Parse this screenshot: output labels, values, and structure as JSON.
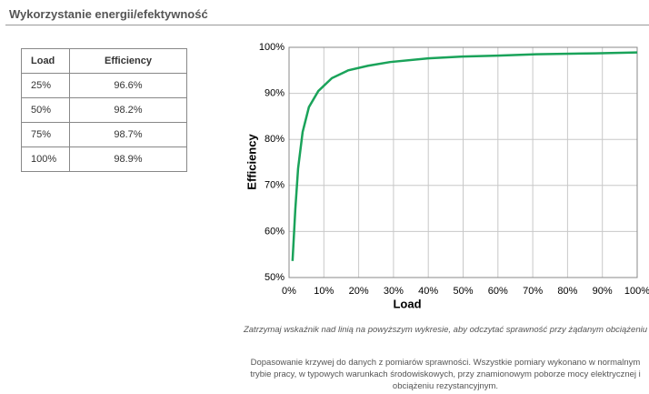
{
  "header": {
    "title": "Wykorzystanie energii/efektywność"
  },
  "table": {
    "columns": [
      "Load",
      "Efficiency"
    ],
    "rows": [
      [
        "25%",
        "96.6%"
      ],
      [
        "50%",
        "98.2%"
      ],
      [
        "75%",
        "98.7%"
      ],
      [
        "100%",
        "98.9%"
      ]
    ]
  },
  "chart_data": {
    "type": "line",
    "xlabel": "Load",
    "ylabel": "Efficiency",
    "color": "#1aa35a",
    "grid": true,
    "x": [
      1,
      1.8,
      2.6,
      3.9,
      5.7,
      8.4,
      12.3,
      17,
      22.7,
      29,
      40,
      50,
      60,
      71,
      88,
      100
    ],
    "values": [
      53.6,
      64.8,
      73.7,
      81.6,
      87,
      90.5,
      93.3,
      95,
      96,
      96.8,
      97.6,
      98,
      98.2,
      98.5,
      98.7,
      98.9
    ],
    "xlim": [
      0,
      100
    ],
    "xticks": [
      {
        "value": 0,
        "label": "0%"
      },
      {
        "value": 10,
        "label": "10%"
      },
      {
        "value": 20,
        "label": "20%"
      },
      {
        "value": 30,
        "label": "30%"
      },
      {
        "value": 40,
        "label": "40%"
      },
      {
        "value": 50,
        "label": "50%"
      },
      {
        "value": 60,
        "label": "60%"
      },
      {
        "value": 70,
        "label": "70%"
      },
      {
        "value": 80,
        "label": "80%"
      },
      {
        "value": 90,
        "label": "90%"
      },
      {
        "value": 100,
        "label": "100%"
      }
    ],
    "ylim": [
      50,
      100
    ],
    "yticks": [
      {
        "value": 50,
        "label": "50%"
      },
      {
        "value": 60,
        "label": "60%"
      },
      {
        "value": 70,
        "label": "70%"
      },
      {
        "value": 80,
        "label": "80%"
      },
      {
        "value": 90,
        "label": "90%"
      },
      {
        "value": 100,
        "label": "100%"
      }
    ]
  },
  "notes": {
    "hint": "Zatrzymaj wskaźnik nad linią na powyższym wykresie, aby odczytać sprawność przy żądanym obciążeniu",
    "description": "Dopasowanie krzywej do danych z pomiarów sprawności. Wszystkie pomiary wykonano w normalnym trybie pracy, w typowych warunkach środowiskowych, przy znamionowym poborze mocy elektrycznej i obciążeniu rezystancyjnym."
  }
}
